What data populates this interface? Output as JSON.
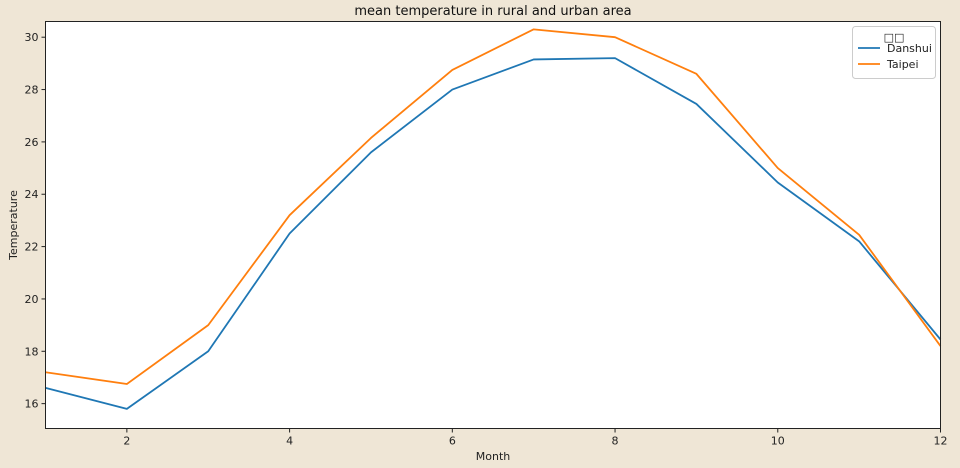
{
  "chart_data": {
    "type": "line",
    "title": "mean temperature in rural and urban area",
    "xlabel": "Month",
    "ylabel": "Temperature",
    "xlim": [
      1,
      12
    ],
    "ylim": [
      15.05,
      30.6
    ],
    "xticks": [
      2,
      4,
      6,
      8,
      10,
      12
    ],
    "yticks": [
      16,
      18,
      20,
      22,
      24,
      26,
      28,
      30
    ],
    "grid": false,
    "legend": {
      "title": "□□",
      "placement": "top-right"
    },
    "x": [
      1,
      2,
      3,
      4,
      5,
      6,
      7,
      8,
      9,
      10,
      11,
      12
    ],
    "series": [
      {
        "name": "Danshui",
        "color": "#1f77b4",
        "values": [
          16.6,
          15.8,
          18.0,
          22.5,
          25.6,
          28.0,
          29.15,
          29.2,
          27.45,
          24.45,
          22.2,
          18.45
        ]
      },
      {
        "name": "Taipei",
        "color": "#ff7f0e",
        "values": [
          17.2,
          16.75,
          19.0,
          23.2,
          26.15,
          28.75,
          30.3,
          30.0,
          28.6,
          25.0,
          22.45,
          18.2
        ]
      }
    ]
  }
}
